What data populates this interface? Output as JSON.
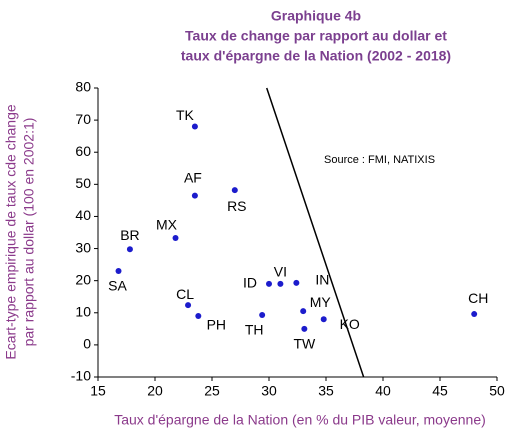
{
  "chart_data": {
    "type": "scatter",
    "title": [
      "Graphique 4b",
      "Taux de change par rapport au dollar et",
      "taux d'épargne de la Nation (2002 - 2018)"
    ],
    "annotation": "Source : FMI, NATIXIS",
    "x_label": "Taux d'épargne de la Nation (en % du PIB valeur, moyenne)",
    "y_label": [
      "Ecart-type empirique de taux cde change",
      "par rapport au dollar (100 en 2002:1)"
    ],
    "xlim": [
      15,
      50
    ],
    "xticks": [
      15,
      20,
      25,
      30,
      35,
      40,
      45,
      50
    ],
    "ylim": [
      -10,
      80
    ],
    "yticks": [
      -10,
      0,
      10,
      20,
      30,
      40,
      50,
      60,
      70,
      80
    ],
    "point_labels": [
      "TK",
      "AF",
      "RS",
      "MX",
      "BR",
      "SA",
      "CL",
      "PH",
      "TH",
      "ID",
      "VI",
      "IN",
      "MY",
      "TW",
      "KO",
      "CH"
    ],
    "series": [
      {
        "color": "#1c1ccc",
        "x": [
          23.5,
          23.5,
          27.0,
          21.8,
          17.8,
          16.8,
          22.9,
          23.8,
          29.4,
          30.0,
          31.0,
          32.4,
          33.0,
          33.1,
          34.8,
          48.0
        ],
        "values": [
          68,
          46.5,
          48.2,
          33.3,
          29.8,
          23,
          12.4,
          9,
          9.3,
          19,
          19,
          19.3,
          10.5,
          5,
          8,
          9.6
        ]
      }
    ],
    "trend_line": {
      "x": [
        29.8,
        38.3
      ],
      "y": [
        80,
        -10
      ],
      "color": "#000000"
    }
  }
}
